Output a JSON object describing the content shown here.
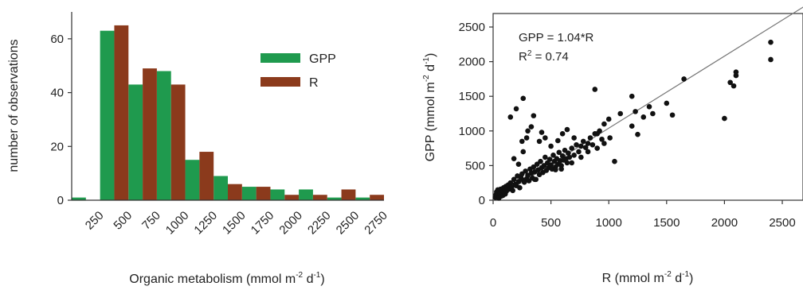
{
  "colors": {
    "gpp": "#1f9a4e",
    "r": "#8b3a1c",
    "axis": "#333333",
    "points": "#111111",
    "fit": "#777777"
  },
  "chart_data": [
    {
      "type": "bar",
      "ylabel": "number of observations",
      "xlabel_main": "Organic metabolism (mmol m",
      "xlabel_sup1": "-2",
      "xlabel_mid": " d",
      "xlabel_sup2": "-1",
      "xlabel_end": ")",
      "ylim": [
        0,
        70
      ],
      "yticks": [
        0,
        20,
        40,
        60
      ],
      "xticks": [
        "250",
        "500",
        "750",
        "1000",
        "1250",
        "1500",
        "1750",
        "2000",
        "2250",
        "2500",
        "2750"
      ],
      "bins": [
        "125",
        "250",
        "375",
        "500",
        "625",
        "750",
        "875",
        "1000",
        "1125",
        "1250",
        "1375",
        "1500",
        "1625",
        "1750",
        "1875",
        "2000",
        "2125",
        "2250",
        "2375",
        "2500",
        "2625",
        "2750"
      ],
      "legend_position": "top-right",
      "series": [
        {
          "name": "GPP",
          "values": [
            1,
            0,
            63,
            0,
            43,
            0,
            48,
            0,
            15,
            0,
            9,
            0,
            5,
            0,
            4,
            0,
            4,
            0,
            1,
            0,
            1,
            0
          ]
        },
        {
          "name": "R",
          "values": [
            0,
            0,
            0,
            65,
            0,
            49,
            0,
            43,
            0,
            18,
            0,
            6,
            0,
            5,
            0,
            2,
            0,
            2,
            0,
            4,
            0,
            2
          ]
        }
      ]
    },
    {
      "type": "scatter",
      "ylabel_main": "GPP (mmol m",
      "ylabel_sup1": "-2",
      "ylabel_mid": " d",
      "ylabel_sup2": "-1",
      "ylabel_end": ")",
      "xlabel_main": "R (mmol m",
      "xlabel_sup1": "-2",
      "xlabel_mid": " d",
      "xlabel_sup2": "-1",
      "xlabel_end": ")",
      "xlim": [
        0,
        2500
      ],
      "ylim": [
        0,
        2500
      ],
      "xticks": [
        "0",
        "500",
        "1000",
        "1500",
        "2000",
        "2500"
      ],
      "yticks": [
        "0",
        "500",
        "1000",
        "1500",
        "2000",
        "2500"
      ],
      "annotation_eq": "GPP = 1.04*R",
      "annotation_r2_main": "R",
      "annotation_r2_sup": "2",
      "annotation_r2_end": " = 0.74",
      "fit_slope": 1.04,
      "points": [
        [
          20,
          40
        ],
        [
          25,
          80
        ],
        [
          30,
          120
        ],
        [
          35,
          60
        ],
        [
          40,
          150
        ],
        [
          45,
          100
        ],
        [
          50,
          30
        ],
        [
          55,
          130
        ],
        [
          60,
          90
        ],
        [
          65,
          160
        ],
        [
          70,
          60
        ],
        [
          75,
          110
        ],
        [
          80,
          140
        ],
        [
          85,
          70
        ],
        [
          90,
          180
        ],
        [
          95,
          120
        ],
        [
          100,
          150
        ],
        [
          105,
          90
        ],
        [
          110,
          200
        ],
        [
          115,
          130
        ],
        [
          120,
          170
        ],
        [
          130,
          220
        ],
        [
          140,
          160
        ],
        [
          150,
          250
        ],
        [
          160,
          190
        ],
        [
          170,
          140
        ],
        [
          180,
          300
        ],
        [
          190,
          230
        ],
        [
          200,
          210
        ],
        [
          210,
          350
        ],
        [
          220,
          270
        ],
        [
          230,
          180
        ],
        [
          240,
          330
        ],
        [
          250,
          380
        ],
        [
          260,
          290
        ],
        [
          270,
          260
        ],
        [
          280,
          420
        ],
        [
          290,
          310
        ],
        [
          300,
          360
        ],
        [
          310,
          280
        ],
        [
          320,
          450
        ],
        [
          330,
          390
        ],
        [
          340,
          320
        ],
        [
          350,
          480
        ],
        [
          360,
          410
        ],
        [
          370,
          300
        ],
        [
          380,
          520
        ],
        [
          390,
          440
        ],
        [
          400,
          370
        ],
        [
          410,
          560
        ],
        [
          420,
          470
        ],
        [
          430,
          400
        ],
        [
          440,
          500
        ],
        [
          450,
          620
        ],
        [
          460,
          430
        ],
        [
          470,
          540
        ],
        [
          480,
          470
        ],
        [
          490,
          590
        ],
        [
          500,
          510
        ],
        [
          510,
          450
        ],
        [
          520,
          650
        ],
        [
          530,
          560
        ],
        [
          540,
          480
        ],
        [
          550,
          600
        ],
        [
          560,
          520
        ],
        [
          570,
          690
        ],
        [
          580,
          570
        ],
        [
          590,
          500
        ],
        [
          600,
          640
        ],
        [
          610,
          580
        ],
        [
          620,
          720
        ],
        [
          630,
          600
        ],
        [
          640,
          540
        ],
        [
          650,
          680
        ],
        [
          660,
          620
        ],
        [
          680,
          750
        ],
        [
          700,
          650
        ],
        [
          720,
          800
        ],
        [
          740,
          700
        ],
        [
          760,
          620
        ],
        [
          780,
          850
        ],
        [
          800,
          760
        ],
        [
          820,
          700
        ],
        [
          840,
          900
        ],
        [
          860,
          800
        ],
        [
          880,
          960
        ],
        [
          900,
          750
        ],
        [
          920,
          1000
        ],
        [
          940,
          880
        ],
        [
          960,
          820
        ],
        [
          180,
          600
        ],
        [
          220,
          520
        ],
        [
          260,
          700
        ],
        [
          290,
          900
        ],
        [
          300,
          1000
        ],
        [
          330,
          1060
        ],
        [
          250,
          850
        ],
        [
          360,
          300
        ],
        [
          400,
          850
        ],
        [
          450,
          900
        ],
        [
          350,
          1220
        ],
        [
          420,
          980
        ],
        [
          500,
          780
        ],
        [
          600,
          960
        ],
        [
          640,
          1020
        ],
        [
          700,
          900
        ],
        [
          880,
          1600
        ],
        [
          1000,
          1170
        ],
        [
          1050,
          560
        ],
        [
          1200,
          1070
        ],
        [
          1200,
          1500
        ],
        [
          1230,
          1280
        ],
        [
          1250,
          950
        ],
        [
          1300,
          1200
        ],
        [
          1350,
          1350
        ],
        [
          1380,
          1250
        ],
        [
          1500,
          1400
        ],
        [
          1550,
          1230
        ],
        [
          1650,
          1750
        ],
        [
          2000,
          1180
        ],
        [
          2050,
          1700
        ],
        [
          2100,
          1800
        ],
        [
          2100,
          1850
        ],
        [
          2080,
          1650
        ],
        [
          2400,
          2280
        ],
        [
          2400,
          2030
        ],
        [
          150,
          1200
        ],
        [
          200,
          1320
        ],
        [
          260,
          1470
        ],
        [
          560,
          860
        ],
        [
          620,
          580
        ],
        [
          680,
          540
        ],
        [
          590,
          450
        ],
        [
          540,
          440
        ],
        [
          820,
          820
        ],
        [
          760,
          780
        ],
        [
          900,
          960
        ],
        [
          960,
          1100
        ],
        [
          1010,
          900
        ],
        [
          1100,
          1250
        ]
      ]
    }
  ],
  "legend": {
    "gpp_label": "GPP",
    "r_label": "R"
  }
}
